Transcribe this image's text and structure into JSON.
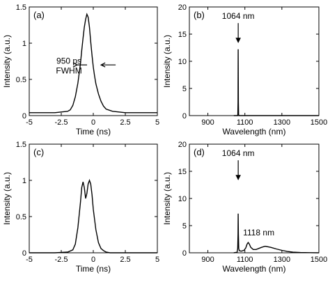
{
  "chart_data": [
    {
      "id": "a",
      "type": "line",
      "panel_label": "(a)",
      "xlabel": "Time (ns)",
      "ylabel": "Intensity (a.u.)",
      "xlim": [
        -5,
        5
      ],
      "ylim": [
        0,
        1.5
      ],
      "xticks": [
        -5,
        -2.5,
        0,
        2.5,
        5
      ],
      "xtick_labels": [
        "-5",
        "-2.5",
        "0",
        "2.5",
        "5"
      ],
      "yticks": [
        0,
        0.5,
        1,
        1.5
      ],
      "ytick_labels": [
        "0",
        "0.5",
        "1",
        "1.5"
      ],
      "series": [
        {
          "x": [
            -5,
            -4,
            -3,
            -2.5,
            -2,
            -1.8,
            -1.6,
            -1.4,
            -1.2,
            -1.0,
            -0.9,
            -0.8,
            -0.7,
            -0.6,
            -0.5,
            -0.4,
            -0.3,
            -0.2,
            -0.1,
            0,
            0.1,
            0.2,
            0.4,
            0.6,
            0.8,
            1.0,
            1.5,
            2,
            2.5,
            3,
            4,
            5
          ],
          "y": [
            0.04,
            0.04,
            0.04,
            0.05,
            0.06,
            0.08,
            0.14,
            0.26,
            0.45,
            0.72,
            0.9,
            1.07,
            1.22,
            1.33,
            1.4,
            1.36,
            1.22,
            1.02,
            0.83,
            0.67,
            0.55,
            0.44,
            0.3,
            0.2,
            0.13,
            0.09,
            0.06,
            0.05,
            0.04,
            0.04,
            0.04,
            0.04
          ]
        }
      ],
      "annotations": [
        {
          "text_lines": [
            "950 ps",
            "FWHM"
          ],
          "x": -1.9,
          "y": 0.6
        }
      ]
    },
    {
      "id": "b",
      "type": "line",
      "panel_label": "(b)",
      "xlabel": "Wavelength (nm)",
      "ylabel": "Intensity (a.u.)",
      "xlim": [
        800,
        1500
      ],
      "ylim": [
        0,
        20
      ],
      "xticks": [
        900,
        1100,
        1300,
        1500
      ],
      "xtick_labels": [
        "900",
        "1100",
        "1300",
        "1500"
      ],
      "yticks": [
        0,
        5,
        10,
        15,
        20
      ],
      "ytick_labels": [
        "0",
        "5",
        "10",
        "15",
        "20"
      ],
      "series": [
        {
          "x": [
            1040,
            1060,
            1062,
            1063,
            1064,
            1065,
            1066,
            1068,
            1100,
            1300,
            1500
          ],
          "y": [
            0,
            0,
            0.2,
            2.5,
            12.2,
            2.5,
            0.2,
            0,
            0,
            0,
            0
          ]
        }
      ],
      "annotations": [
        {
          "text": "1064 nm",
          "x": 1064,
          "y": 17.8
        }
      ]
    },
    {
      "id": "c",
      "type": "line",
      "panel_label": "(c)",
      "xlabel": "Time (ns)",
      "ylabel": "Intensity (a.u.)",
      "xlim": [
        -5,
        5
      ],
      "ylim": [
        0,
        1.5
      ],
      "xticks": [
        -5,
        -2.5,
        0,
        2.5,
        5
      ],
      "xtick_labels": [
        "-5",
        "-2.5",
        "0",
        "2.5",
        "5"
      ],
      "yticks": [
        0,
        0.5,
        1,
        1.5
      ],
      "ytick_labels": [
        "0",
        "0.5",
        "1",
        "1.5"
      ],
      "series": [
        {
          "x": [
            -5,
            -3,
            -2,
            -1.6,
            -1.4,
            -1.2,
            -1.0,
            -0.9,
            -0.8,
            -0.7,
            -0.6,
            -0.5,
            -0.4,
            -0.3,
            -0.2,
            -0.1,
            0,
            0.2,
            0.4,
            0.6,
            0.8,
            1.0,
            1.3,
            2,
            3,
            5
          ],
          "y": [
            0,
            0,
            0.01,
            0.04,
            0.12,
            0.35,
            0.7,
            0.9,
            0.98,
            0.9,
            0.75,
            0.82,
            0.95,
            1.0,
            0.95,
            0.8,
            0.6,
            0.32,
            0.14,
            0.06,
            0.03,
            0.01,
            0,
            0,
            0,
            0
          ]
        }
      ]
    },
    {
      "id": "d",
      "type": "line",
      "panel_label": "(d)",
      "xlabel": "Wavelength (nm)",
      "ylabel": "Intensity (a.u.)",
      "xlim": [
        800,
        1500
      ],
      "ylim": [
        0,
        20
      ],
      "xticks": [
        900,
        1100,
        1300,
        1500
      ],
      "xtick_labels": [
        "900",
        "1100",
        "1300",
        "1500"
      ],
      "yticks": [
        0,
        5,
        10,
        15,
        20
      ],
      "ytick_labels": [
        "0",
        "5",
        "10",
        "15",
        "20"
      ],
      "series": [
        {
          "x": [
            1040,
            1058,
            1061,
            1063,
            1064,
            1065,
            1067,
            1070,
            1080,
            1095,
            1105,
            1112,
            1118,
            1124,
            1132,
            1145,
            1160,
            1175,
            1190,
            1210,
            1240,
            1270,
            1300,
            1330,
            1360,
            1400,
            1450,
            1500
          ],
          "y": [
            0,
            0.1,
            0.8,
            3.5,
            7.2,
            3.5,
            0.8,
            0.4,
            0.3,
            0.45,
            0.9,
            1.6,
            1.9,
            1.6,
            1.0,
            0.6,
            0.6,
            0.8,
            1.0,
            1.2,
            1.0,
            0.7,
            0.45,
            0.25,
            0.12,
            0.05,
            0.02,
            0
          ]
        }
      ],
      "annotations": [
        {
          "text": "1064 nm",
          "x": 1064,
          "y": 17.8
        },
        {
          "text": "1118 nm",
          "x": 1175,
          "y": 3.2
        }
      ]
    }
  ]
}
